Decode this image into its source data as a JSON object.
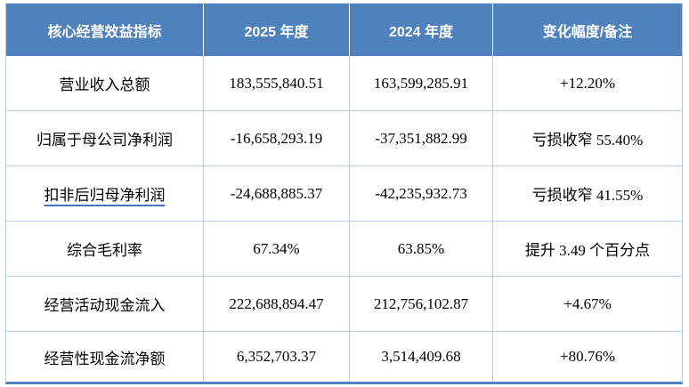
{
  "table": {
    "title_semantic": "core-operating-performance-indicators",
    "columns": [
      "核心经营效益指标",
      "2025 年度",
      "2024 年度",
      "变化幅度/备注"
    ],
    "rows": [
      {
        "indicator": "营业收入总额",
        "y2025": "183,555,840.51",
        "y2024": "163,599,285.91",
        "change": "+12.20%",
        "underlined": false
      },
      {
        "indicator": "归属于母公司净利润",
        "y2025": "-16,658,293.19",
        "y2024": "-37,351,882.99",
        "change": "亏损收窄 55.40%",
        "underlined": false
      },
      {
        "indicator": "扣非后归母净利润",
        "y2025": "-24,688,885.37",
        "y2024": "-42,235,932.73",
        "change": "亏损收窄 41.55%",
        "underlined": true
      },
      {
        "indicator": "综合毛利率",
        "y2025": "67.34%",
        "y2024": "63.85%",
        "change": "提升 3.49 个百分点",
        "underlined": false
      },
      {
        "indicator": "经营活动现金流入",
        "y2025": "222,688,894.47",
        "y2024": "212,756,102.87",
        "change": "+4.67%",
        "underlined": false
      },
      {
        "indicator": "经营性现金流净额",
        "y2025": "6,352,703.37",
        "y2024": "3,514,409.68",
        "change": "+80.76%",
        "underlined": false
      }
    ],
    "colors": {
      "header_bg": "#4f81bd",
      "header_text": "#ffffff",
      "grid_line": "#b9cde5",
      "bottom_border": "#4f81bd",
      "body_text": "#000000",
      "underline": "#4472c4"
    }
  }
}
